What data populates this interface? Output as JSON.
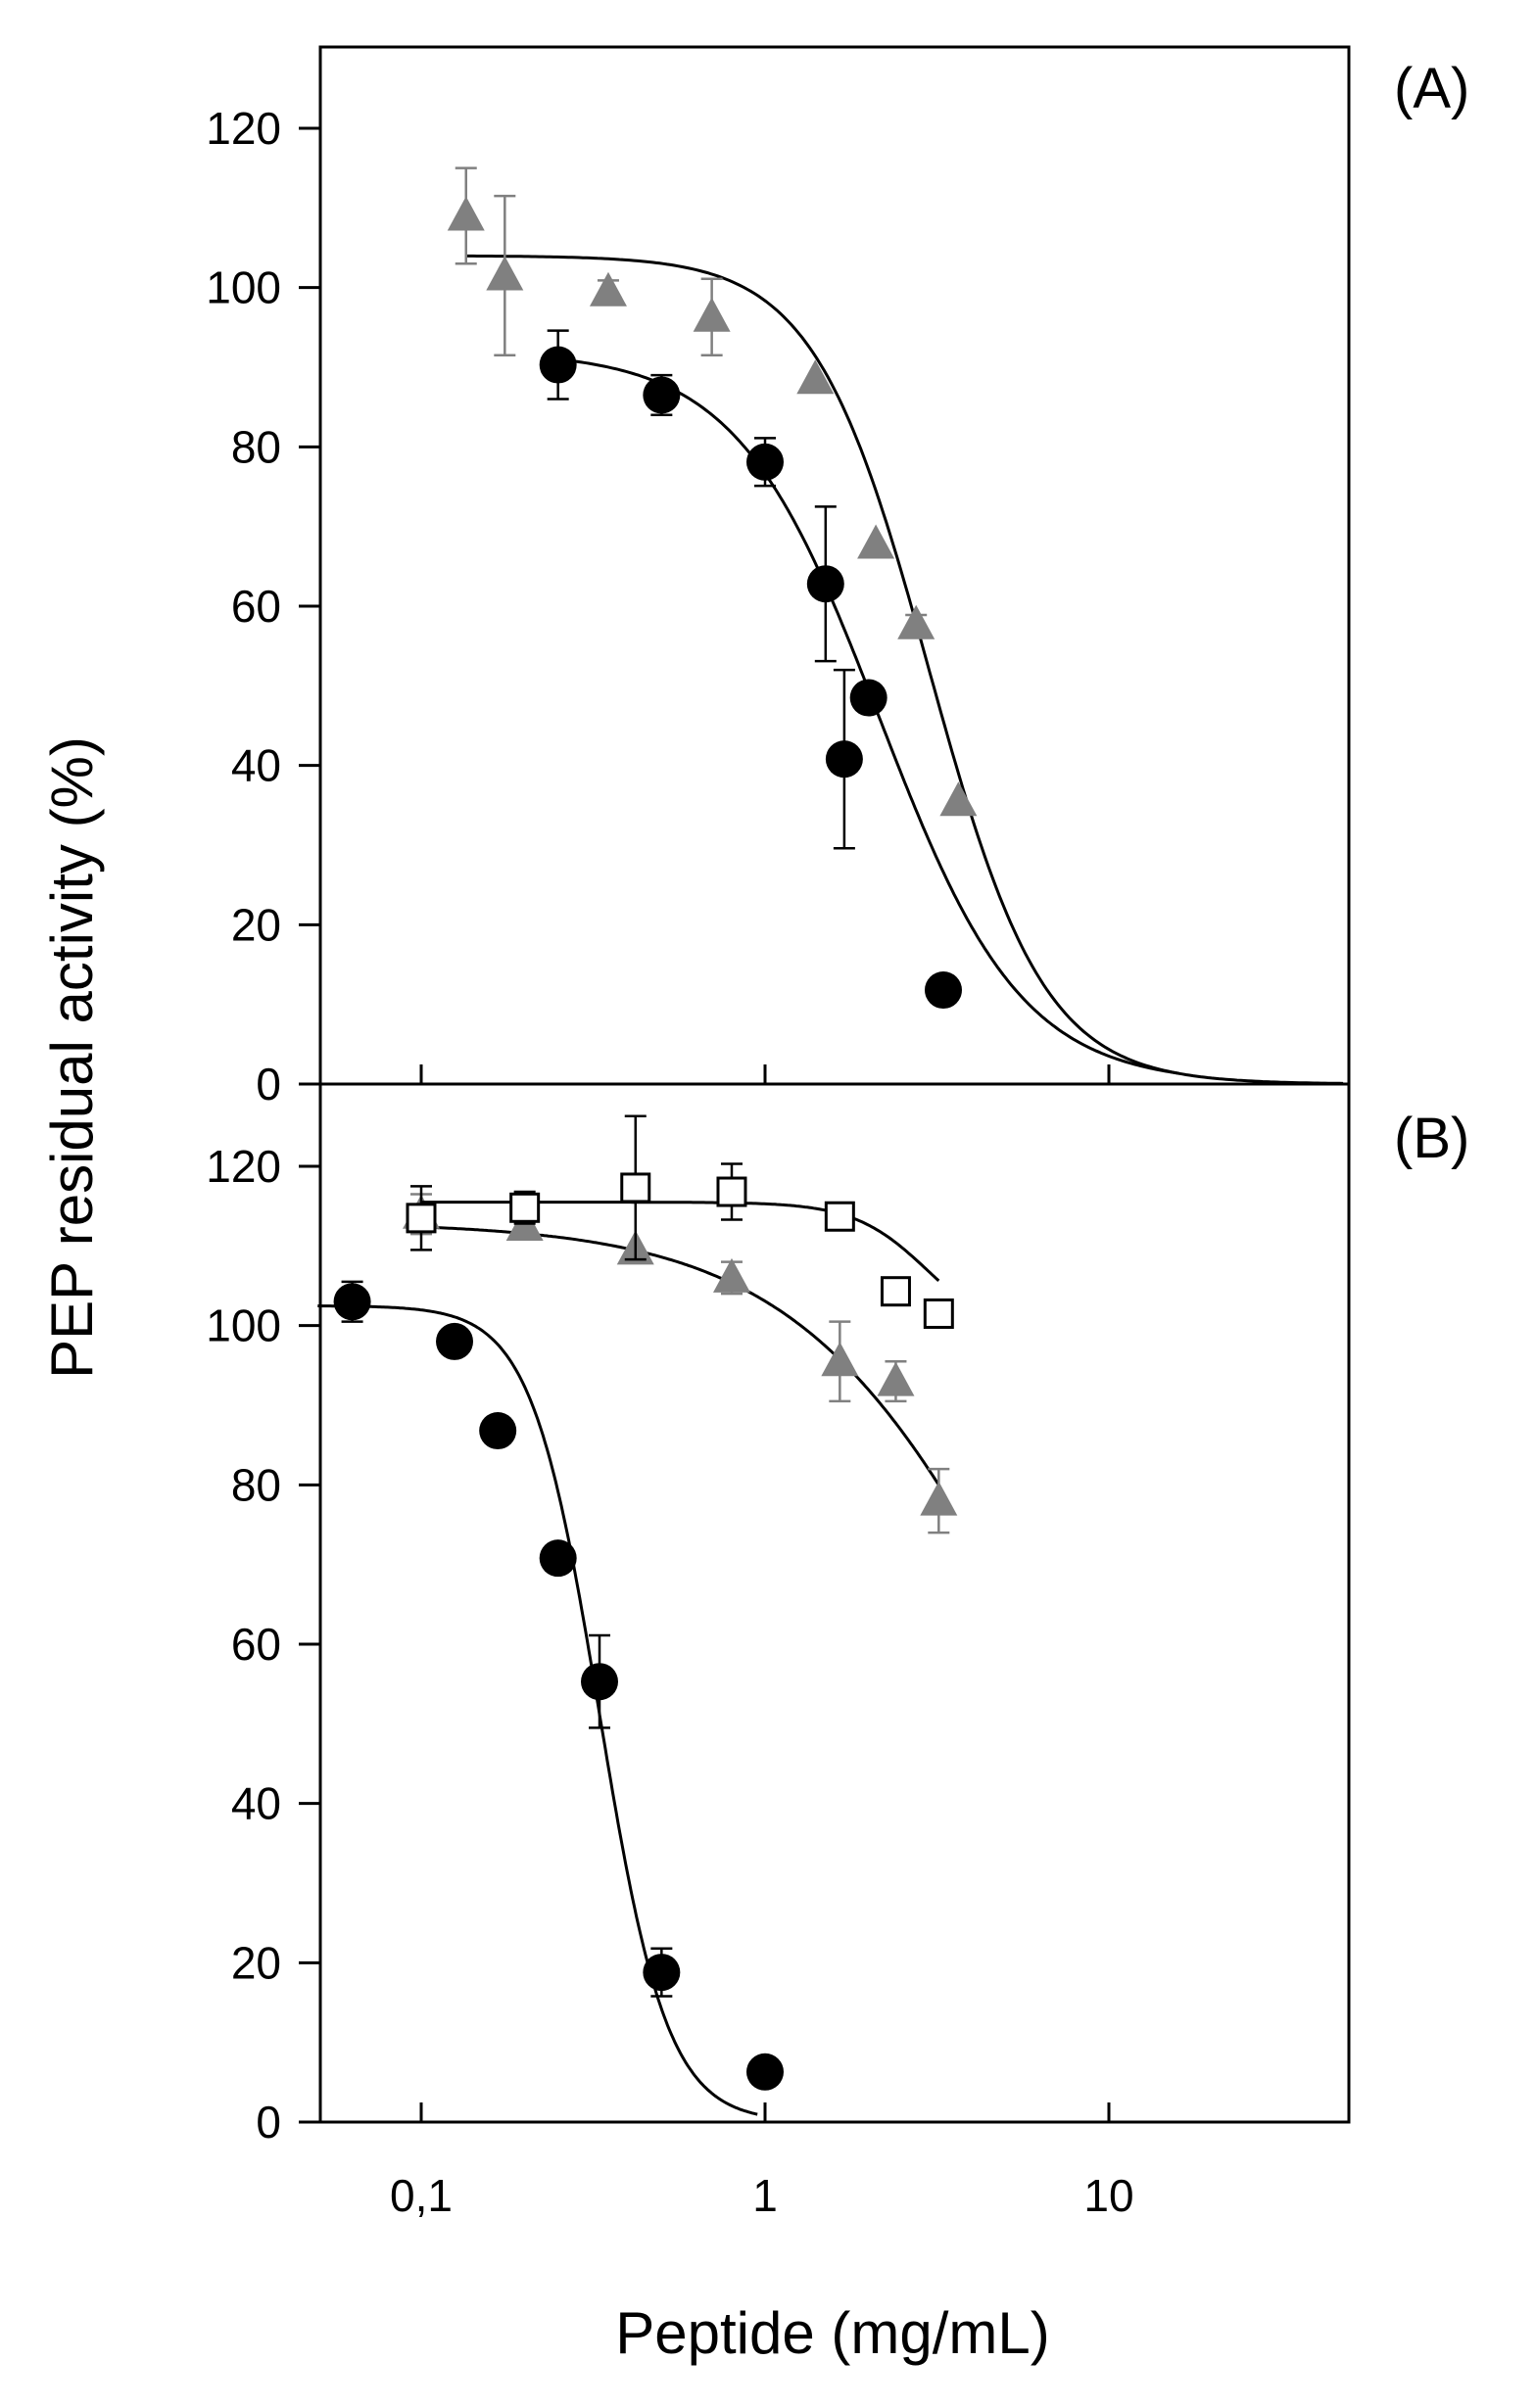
{
  "chart_data": [
    {
      "panel": "A",
      "type": "scatter",
      "label": "(A)",
      "x_scale": "log",
      "xlim": [
        0.05,
        50
      ],
      "ylim": [
        0,
        130
      ],
      "yticks": [
        0,
        20,
        40,
        60,
        80,
        100,
        120
      ],
      "ytick_labels": [
        "0",
        "20",
        "40",
        "60",
        "80",
        "100",
        "120"
      ],
      "series": [
        {
          "name": "circles",
          "marker": "filled-circle",
          "color": "#000000",
          "error_color": "#000000",
          "x": [
            0.25,
            0.5,
            1.0,
            1.5,
            1.7,
            2.0,
            3.3
          ],
          "y": [
            90.3,
            86.5,
            78.1,
            62.8,
            40.8,
            48.5,
            11.8
          ],
          "err": [
            4.3,
            2.5,
            3.0,
            9.7,
            11.2,
            1.5,
            0
          ],
          "fit": {
            "top": 92,
            "ic50": 2.15,
            "hill": 2.1,
            "x_range": [
              0.25,
              16
            ]
          }
        },
        {
          "name": "triangles",
          "marker": "filled-triangle",
          "color": "#808080",
          "error_color": "#808080",
          "x": [
            0.135,
            0.175,
            0.35,
            0.7,
            1.4,
            2.1,
            2.75,
            3.65
          ],
          "y": [
            109,
            101.5,
            99.5,
            96.3,
            88.5,
            67.8,
            57.7,
            35.5
          ],
          "err": [
            6.0,
            10.0,
            1.4,
            4.8,
            0,
            0,
            1.2,
            0
          ],
          "fit": {
            "top": 104,
            "ic50": 3.0,
            "hill": 2.6,
            "x_range": [
              0.135,
              48
            ]
          }
        }
      ]
    },
    {
      "panel": "B",
      "type": "scatter",
      "label": "(B)",
      "x_scale": "log",
      "xlim": [
        0.05,
        50
      ],
      "ylim": [
        0,
        130
      ],
      "yticks": [
        0,
        20,
        40,
        60,
        80,
        100,
        120
      ],
      "ytick_labels": [
        "0",
        "20",
        "40",
        "60",
        "80",
        "100",
        "120"
      ],
      "xticks": [
        0.1,
        1,
        10
      ],
      "xtick_labels": [
        "0,1",
        "1",
        "10"
      ],
      "xlabel": "Peptide (mg/mL)",
      "ylabel": "PEP residual activity (%)",
      "series": [
        {
          "name": "circles",
          "marker": "filled-circle",
          "color": "#000000",
          "error_color": "#000000",
          "x": [
            0.063,
            0.125,
            0.167,
            0.25,
            0.33,
            0.5,
            1.0
          ],
          "y": [
            103,
            98,
            86.8,
            70.8,
            55.3,
            18.8,
            6.3
          ],
          "err": [
            2.5,
            0,
            0,
            0,
            5.8,
            3.0,
            0
          ],
          "fit": {
            "top": 102.5,
            "ic50": 0.33,
            "hill": 4.4,
            "x_range": [
              0.05,
              0.95
            ]
          }
        },
        {
          "name": "triangles",
          "marker": "filled-triangle",
          "color": "#808080",
          "error_color": "#808080",
          "x": [
            0.1,
            0.2,
            0.42,
            0.8,
            1.65,
            2.4,
            3.2
          ],
          "y": [
            114,
            112.5,
            109.5,
            106,
            95.5,
            93,
            78
          ],
          "err": [
            2.5,
            1.0,
            0,
            2.0,
            5.0,
            2.5,
            4.0
          ],
          "fit": {
            "top": 113,
            "ic50": 6.5,
            "hill": 1.25,
            "x_range": [
              0.1,
              3.2
            ]
          }
        },
        {
          "name": "open squares",
          "marker": "open-square",
          "color": "#000000",
          "error_color": "#000000",
          "x": [
            0.1,
            0.2,
            0.42,
            0.8,
            1.65,
            2.4,
            3.2
          ],
          "y": [
            113.5,
            114.8,
            117.3,
            116.8,
            113.7,
            104.3,
            101.5
          ],
          "err": [
            4.0,
            2.0,
            9.0,
            3.5,
            0,
            0,
            0
          ],
          "fit": {
            "top": 115.5,
            "ic50": 3.0,
            "hill": 4.0,
            "bottom": 98,
            "x_range": [
              0.1,
              3.2
            ]
          }
        }
      ]
    }
  ]
}
